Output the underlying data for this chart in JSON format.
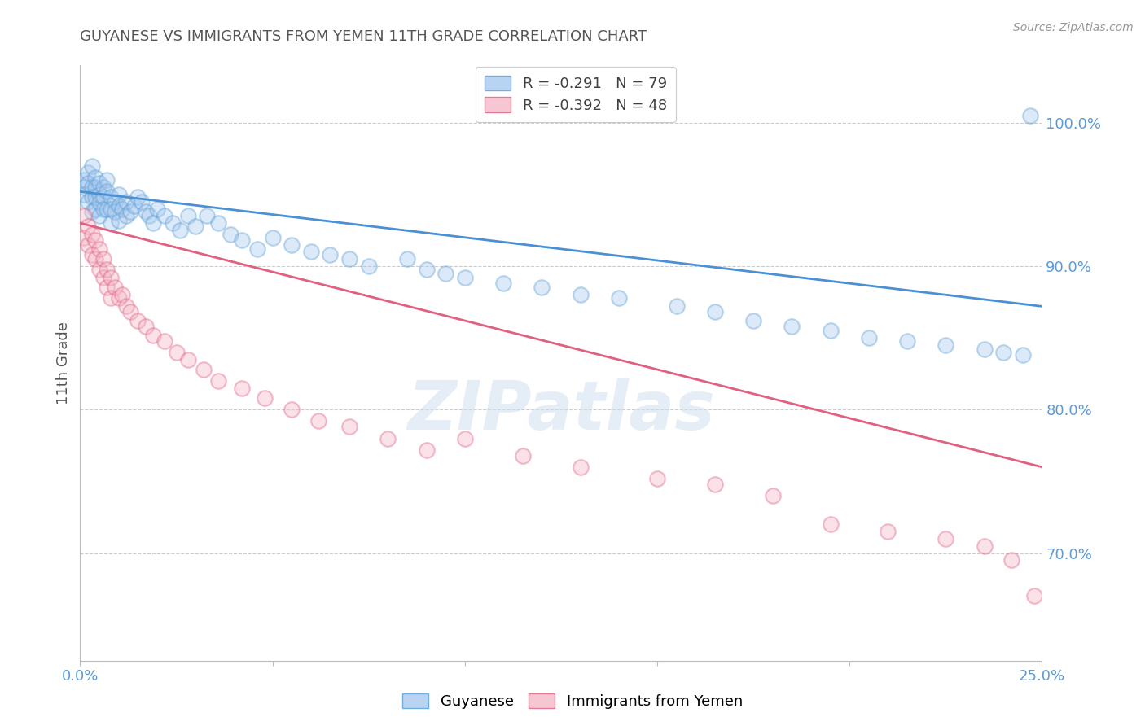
{
  "title": "GUYANESE VS IMMIGRANTS FROM YEMEN 11TH GRADE CORRELATION CHART",
  "source": "Source: ZipAtlas.com",
  "ylabel": "11th Grade",
  "yticks": [
    "100.0%",
    "90.0%",
    "80.0%",
    "70.0%"
  ],
  "ytick_vals": [
    1.0,
    0.9,
    0.8,
    0.7
  ],
  "xlim": [
    0.0,
    0.25
  ],
  "ylim": [
    0.625,
    1.04
  ],
  "blue_scatter_x": [
    0.001,
    0.001,
    0.001,
    0.002,
    0.002,
    0.002,
    0.003,
    0.003,
    0.003,
    0.003,
    0.004,
    0.004,
    0.004,
    0.004,
    0.005,
    0.005,
    0.005,
    0.005,
    0.006,
    0.006,
    0.006,
    0.007,
    0.007,
    0.007,
    0.008,
    0.008,
    0.008,
    0.009,
    0.009,
    0.01,
    0.01,
    0.01,
    0.011,
    0.012,
    0.012,
    0.013,
    0.014,
    0.015,
    0.016,
    0.017,
    0.018,
    0.019,
    0.02,
    0.022,
    0.024,
    0.026,
    0.028,
    0.03,
    0.033,
    0.036,
    0.039,
    0.042,
    0.046,
    0.05,
    0.055,
    0.06,
    0.065,
    0.07,
    0.075,
    0.085,
    0.09,
    0.095,
    0.1,
    0.11,
    0.12,
    0.13,
    0.14,
    0.155,
    0.165,
    0.175,
    0.185,
    0.195,
    0.205,
    0.215,
    0.225,
    0.235,
    0.24,
    0.245,
    0.247
  ],
  "blue_scatter_y": [
    0.96,
    0.955,
    0.95,
    0.965,
    0.958,
    0.945,
    0.97,
    0.955,
    0.948,
    0.938,
    0.962,
    0.955,
    0.948,
    0.94,
    0.958,
    0.95,
    0.944,
    0.935,
    0.955,
    0.948,
    0.94,
    0.96,
    0.952,
    0.94,
    0.948,
    0.94,
    0.93,
    0.945,
    0.938,
    0.95,
    0.942,
    0.932,
    0.94,
    0.945,
    0.935,
    0.938,
    0.942,
    0.948,
    0.945,
    0.938,
    0.935,
    0.93,
    0.94,
    0.935,
    0.93,
    0.925,
    0.935,
    0.928,
    0.935,
    0.93,
    0.922,
    0.918,
    0.912,
    0.92,
    0.915,
    0.91,
    0.908,
    0.905,
    0.9,
    0.905,
    0.898,
    0.895,
    0.892,
    0.888,
    0.885,
    0.88,
    0.878,
    0.872,
    0.868,
    0.862,
    0.858,
    0.855,
    0.85,
    0.848,
    0.845,
    0.842,
    0.84,
    0.838,
    1.005
  ],
  "pink_scatter_x": [
    0.001,
    0.001,
    0.002,
    0.002,
    0.003,
    0.003,
    0.004,
    0.004,
    0.005,
    0.005,
    0.006,
    0.006,
    0.007,
    0.007,
    0.008,
    0.008,
    0.009,
    0.01,
    0.011,
    0.012,
    0.013,
    0.015,
    0.017,
    0.019,
    0.022,
    0.025,
    0.028,
    0.032,
    0.036,
    0.042,
    0.048,
    0.055,
    0.062,
    0.07,
    0.08,
    0.09,
    0.1,
    0.115,
    0.13,
    0.15,
    0.165,
    0.18,
    0.195,
    0.21,
    0.225,
    0.235,
    0.242,
    0.248
  ],
  "pink_scatter_y": [
    0.935,
    0.92,
    0.928,
    0.915,
    0.922,
    0.908,
    0.918,
    0.905,
    0.912,
    0.898,
    0.905,
    0.892,
    0.898,
    0.885,
    0.892,
    0.878,
    0.885,
    0.878,
    0.88,
    0.872,
    0.868,
    0.862,
    0.858,
    0.852,
    0.848,
    0.84,
    0.835,
    0.828,
    0.82,
    0.815,
    0.808,
    0.8,
    0.792,
    0.788,
    0.78,
    0.772,
    0.78,
    0.768,
    0.76,
    0.752,
    0.748,
    0.74,
    0.72,
    0.715,
    0.71,
    0.705,
    0.695,
    0.67
  ],
  "blue_line_x": [
    0.0,
    0.25
  ],
  "blue_line_y": [
    0.952,
    0.872
  ],
  "pink_line_x": [
    0.0,
    0.25
  ],
  "pink_line_y": [
    0.93,
    0.76
  ],
  "scatter_size": 180,
  "scatter_alpha": 0.4,
  "scatter_edgewidth": 1.5,
  "blue_color": "#a8c8f0",
  "blue_edge_color": "#5a9fd4",
  "pink_color": "#f5b8c8",
  "pink_edge_color": "#e06080",
  "blue_line_color": "#4a90d4",
  "pink_line_color": "#e06080",
  "watermark": "ZIPatlas",
  "background_color": "#ffffff",
  "grid_color": "#cccccc",
  "title_fontsize": 13,
  "title_color": "#555555",
  "axis_color": "#5b9bd5",
  "ylabel_color": "#555555",
  "legend_r_color_blue": "#e05070",
  "legend_r_color_pink": "#e05070",
  "legend_n_color": "#404040"
}
